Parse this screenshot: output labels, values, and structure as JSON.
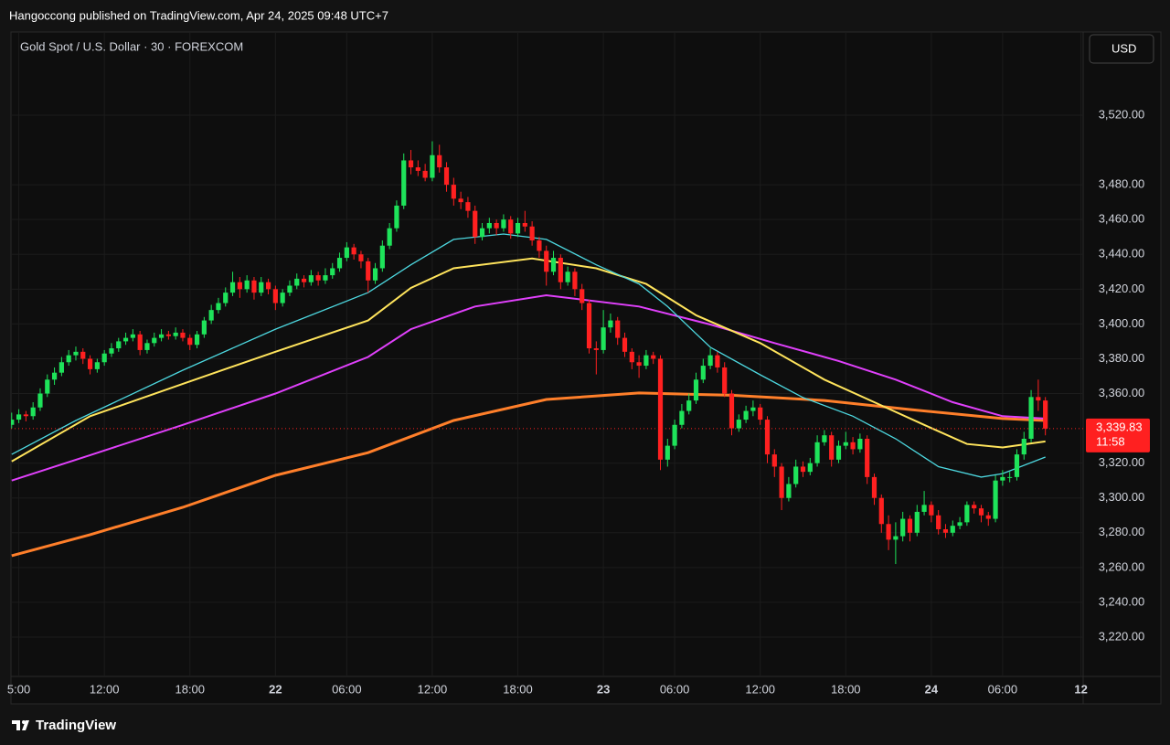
{
  "header": {
    "text": "Hangoccong published on TradingView.com, Apr 24, 2025 09:48 UTC+7"
  },
  "chart_data": {
    "type": "candlestick",
    "title": "Gold Spot / U.S. Dollar · 30 · FOREXCOM",
    "currency": "USD",
    "up_color": "#1ee35a",
    "down_color": "#ff2020",
    "grid": true,
    "ylim": [
      3197.4,
      3567.8
    ],
    "yticks": [
      {
        "value": 3220,
        "label": "3,220.00"
      },
      {
        "value": 3240,
        "label": "3,240.00"
      },
      {
        "value": 3260,
        "label": "3,260.00"
      },
      {
        "value": 3280,
        "label": "3,280.00"
      },
      {
        "value": 3300,
        "label": "3,300.00"
      },
      {
        "value": 3320,
        "label": "3,320.00"
      },
      {
        "value": 3360,
        "label": "3,360.00"
      },
      {
        "value": 3380,
        "label": "3,380.00"
      },
      {
        "value": 3400,
        "label": "3,400.00"
      },
      {
        "value": 3420,
        "label": "3,420.00"
      },
      {
        "value": 3440,
        "label": "3,440.00"
      },
      {
        "value": 3460,
        "label": "3,460.00"
      },
      {
        "value": 3480,
        "label": "3,480.00"
      },
      {
        "value": 3520,
        "label": "3,520.00"
      }
    ],
    "xlim": [
      -0.1,
      150.3
    ],
    "xticks": [
      {
        "value": 1,
        "label": "5:00"
      },
      {
        "value": 13,
        "label": "12:00"
      },
      {
        "value": 25,
        "label": "18:00"
      },
      {
        "value": 37,
        "label": "22"
      },
      {
        "value": 47,
        "label": "06:00"
      },
      {
        "value": 59,
        "label": "12:00"
      },
      {
        "value": 71,
        "label": "18:00"
      },
      {
        "value": 83,
        "label": "23"
      },
      {
        "value": 93,
        "label": "06:00"
      },
      {
        "value": 105,
        "label": "12:00"
      },
      {
        "value": 117,
        "label": "18:00"
      },
      {
        "value": 129,
        "label": "24"
      },
      {
        "value": 139,
        "label": "06:00"
      },
      {
        "value": 150,
        "label": "12"
      }
    ],
    "ohlc": [
      [
        3342,
        3349,
        3340,
        3345
      ],
      [
        3345,
        3351,
        3343,
        3348
      ],
      [
        3348,
        3350,
        3344,
        3347
      ],
      [
        3347,
        3355,
        3345,
        3352
      ],
      [
        3352,
        3363,
        3350,
        3360
      ],
      [
        3360,
        3371,
        3358,
        3368
      ],
      [
        3368,
        3375,
        3365,
        3372
      ],
      [
        3372,
        3381,
        3370,
        3378
      ],
      [
        3378,
        3385,
        3376,
        3382
      ],
      [
        3382,
        3387,
        3379,
        3384
      ],
      [
        3384,
        3386,
        3377,
        3380
      ],
      [
        3380,
        3382,
        3371,
        3374
      ],
      [
        3374,
        3380,
        3372,
        3378
      ],
      [
        3378,
        3385,
        3376,
        3383
      ],
      [
        3383,
        3389,
        3381,
        3386
      ],
      [
        3386,
        3392,
        3384,
        3390
      ],
      [
        3390,
        3395,
        3388,
        3392
      ],
      [
        3392,
        3397,
        3390,
        3394
      ],
      [
        3394,
        3396,
        3382,
        3385
      ],
      [
        3385,
        3391,
        3383,
        3389
      ],
      [
        3389,
        3395,
        3387,
        3392
      ],
      [
        3392,
        3397,
        3390,
        3394
      ],
      [
        3394,
        3396,
        3391,
        3393
      ],
      [
        3393,
        3398,
        3391,
        3395
      ],
      [
        3395,
        3397,
        3390,
        3392
      ],
      [
        3392,
        3394,
        3385,
        3388
      ],
      [
        3388,
        3396,
        3386,
        3394
      ],
      [
        3394,
        3404,
        3392,
        3402
      ],
      [
        3402,
        3411,
        3400,
        3408
      ],
      [
        3408,
        3415,
        3406,
        3412
      ],
      [
        3412,
        3421,
        3410,
        3418
      ],
      [
        3418,
        3430,
        3416,
        3424
      ],
      [
        3424,
        3427,
        3415,
        3420
      ],
      [
        3420,
        3428,
        3418,
        3425
      ],
      [
        3425,
        3427,
        3414,
        3418
      ],
      [
        3418,
        3427,
        3416,
        3424
      ],
      [
        3424,
        3426,
        3417,
        3420
      ],
      [
        3420,
        3422,
        3408,
        3412
      ],
      [
        3412,
        3420,
        3410,
        3418
      ],
      [
        3418,
        3425,
        3416,
        3422
      ],
      [
        3422,
        3429,
        3420,
        3426
      ],
      [
        3426,
        3428,
        3421,
        3424
      ],
      [
        3424,
        3431,
        3422,
        3428
      ],
      [
        3428,
        3430,
        3422,
        3425
      ],
      [
        3425,
        3432,
        3423,
        3428
      ],
      [
        3428,
        3435,
        3426,
        3432
      ],
      [
        3432,
        3441,
        3430,
        3438
      ],
      [
        3438,
        3447,
        3436,
        3444
      ],
      [
        3444,
        3446,
        3437,
        3440
      ],
      [
        3440,
        3442,
        3432,
        3436
      ],
      [
        3436,
        3438,
        3418,
        3425
      ],
      [
        3425,
        3435,
        3423,
        3432
      ],
      [
        3432,
        3448,
        3430,
        3445
      ],
      [
        3445,
        3458,
        3443,
        3455
      ],
      [
        3455,
        3471,
        3453,
        3468
      ],
      [
        3468,
        3498,
        3466,
        3494
      ],
      [
        3494,
        3500,
        3486,
        3490
      ],
      [
        3490,
        3494,
        3485,
        3488
      ],
      [
        3488,
        3492,
        3482,
        3484
      ],
      [
        3484,
        3505,
        3482,
        3497
      ],
      [
        3497,
        3503,
        3487,
        3490
      ],
      [
        3490,
        3493,
        3476,
        3480
      ],
      [
        3480,
        3484,
        3468,
        3472
      ],
      [
        3472,
        3476,
        3466,
        3470
      ],
      [
        3470,
        3473,
        3461,
        3465
      ],
      [
        3465,
        3468,
        3446,
        3450
      ],
      [
        3450,
        3458,
        3448,
        3455
      ],
      [
        3455,
        3461,
        3452,
        3458
      ],
      [
        3458,
        3460,
        3451,
        3455
      ],
      [
        3455,
        3463,
        3453,
        3460
      ],
      [
        3460,
        3462,
        3449,
        3452
      ],
      [
        3452,
        3461,
        3450,
        3458
      ],
      [
        3458,
        3465,
        3453,
        3456
      ],
      [
        3456,
        3459,
        3445,
        3448
      ],
      [
        3448,
        3450,
        3438,
        3442
      ],
      [
        3442,
        3445,
        3422,
        3430
      ],
      [
        3430,
        3442,
        3428,
        3438
      ],
      [
        3438,
        3440,
        3420,
        3424
      ],
      [
        3424,
        3433,
        3422,
        3430
      ],
      [
        3430,
        3432,
        3416,
        3420
      ],
      [
        3420,
        3423,
        3408,
        3412
      ],
      [
        3412,
        3414,
        3383,
        3386
      ],
      [
        3386,
        3390,
        3371,
        3385
      ],
      [
        3385,
        3408,
        3383,
        3398
      ],
      [
        3398,
        3406,
        3395,
        3402
      ],
      [
        3402,
        3404,
        3388,
        3392
      ],
      [
        3392,
        3395,
        3381,
        3384
      ],
      [
        3384,
        3386,
        3374,
        3378
      ],
      [
        3378,
        3382,
        3369,
        3376
      ],
      [
        3376,
        3385,
        3374,
        3382
      ],
      [
        3382,
        3384,
        3377,
        3380
      ],
      [
        3380,
        3382,
        3316,
        3322
      ],
      [
        3322,
        3334,
        3318,
        3330
      ],
      [
        3330,
        3345,
        3328,
        3342
      ],
      [
        3342,
        3354,
        3340,
        3350
      ],
      [
        3350,
        3360,
        3348,
        3356
      ],
      [
        3356,
        3372,
        3354,
        3368
      ],
      [
        3368,
        3380,
        3366,
        3376
      ],
      [
        3376,
        3386,
        3374,
        3382
      ],
      [
        3382,
        3384,
        3372,
        3375
      ],
      [
        3375,
        3378,
        3358,
        3360
      ],
      [
        3360,
        3362,
        3336,
        3340
      ],
      [
        3340,
        3348,
        3338,
        3345
      ],
      [
        3345,
        3353,
        3343,
        3350
      ],
      [
        3350,
        3356,
        3347,
        3352
      ],
      [
        3352,
        3354,
        3342,
        3345
      ],
      [
        3345,
        3347,
        3320,
        3325
      ],
      [
        3325,
        3328,
        3312,
        3318
      ],
      [
        3318,
        3320,
        3293,
        3300
      ],
      [
        3300,
        3312,
        3298,
        3308
      ],
      [
        3308,
        3322,
        3306,
        3318
      ],
      [
        3318,
        3321,
        3312,
        3315
      ],
      [
        3315,
        3323,
        3313,
        3320
      ],
      [
        3320,
        3336,
        3318,
        3332
      ],
      [
        3332,
        3339,
        3330,
        3336
      ],
      [
        3336,
        3338,
        3318,
        3322
      ],
      [
        3322,
        3333,
        3320,
        3330
      ],
      [
        3330,
        3338,
        3328,
        3332
      ],
      [
        3332,
        3335,
        3325,
        3328
      ],
      [
        3328,
        3337,
        3326,
        3334
      ],
      [
        3334,
        3336,
        3308,
        3312
      ],
      [
        3312,
        3314,
        3296,
        3300
      ],
      [
        3300,
        3302,
        3280,
        3285
      ],
      [
        3285,
        3290,
        3270,
        3276
      ],
      [
        3276,
        3286,
        3262,
        3278
      ],
      [
        3278,
        3292,
        3275,
        3288
      ],
      [
        3288,
        3290,
        3275,
        3280
      ],
      [
        3280,
        3296,
        3278,
        3292
      ],
      [
        3292,
        3304,
        3290,
        3296
      ],
      [
        3296,
        3298,
        3286,
        3290
      ],
      [
        3290,
        3293,
        3279,
        3282
      ],
      [
        3282,
        3285,
        3277,
        3280
      ],
      [
        3280,
        3287,
        3278,
        3284
      ],
      [
        3284,
        3289,
        3282,
        3286
      ],
      [
        3286,
        3298,
        3284,
        3296
      ],
      [
        3296,
        3298,
        3291,
        3294
      ],
      [
        3294,
        3296,
        3286,
        3290
      ],
      [
        3290,
        3292,
        3284,
        3288
      ],
      [
        3288,
        3313,
        3286,
        3310
      ],
      [
        3310,
        3316,
        3307,
        3312
      ],
      [
        3312,
        3315,
        3309,
        3312
      ],
      [
        3312,
        3328,
        3310,
        3325
      ],
      [
        3325,
        3338,
        3322,
        3334
      ],
      [
        3334,
        3362,
        3332,
        3358
      ],
      [
        3358,
        3368,
        3350,
        3356
      ],
      [
        3356,
        3358,
        3336,
        3339.83
      ]
    ],
    "lines": [
      {
        "color": "#ff7f2a",
        "width": 3,
        "x": [
          0,
          11,
          24,
          37,
          50,
          62,
          75,
          88,
          101,
          114,
          126,
          139,
          145
        ],
        "values": [
          3266.8,
          3278.9,
          3294.6,
          3313,
          3326,
          3344.5,
          3356.6,
          3360.3,
          3359,
          3356,
          3350.8,
          3345.6,
          3344.5
        ]
      },
      {
        "color": "#e040fb",
        "width": 2,
        "x": [
          0,
          11,
          24,
          37,
          50,
          56,
          65,
          75,
          88,
          98,
          107,
          116,
          124,
          132,
          139,
          145
        ],
        "values": [
          3310,
          3324.6,
          3342,
          3360,
          3381,
          3397,
          3410,
          3416.5,
          3410,
          3399.7,
          3389,
          3378.7,
          3368,
          3355,
          3347,
          3345.6
        ]
      },
      {
        "color": "#ffe45c",
        "width": 2,
        "x": [
          0,
          11,
          24,
          37,
          50,
          56,
          62,
          73,
          82,
          89,
          96,
          105,
          114,
          121,
          128,
          134,
          139,
          145
        ],
        "values": [
          3321,
          3347,
          3365.6,
          3384,
          3402,
          3420.7,
          3432,
          3437.6,
          3432,
          3423,
          3405,
          3389,
          3368,
          3355,
          3342,
          3331,
          3329,
          3332.5
        ]
      },
      {
        "color": "#4dd8e0",
        "width": 1.3,
        "x": [
          0,
          9,
          24,
          37,
          50,
          56,
          62,
          69,
          75,
          82,
          88,
          92,
          98,
          105,
          111,
          118,
          124,
          130,
          136,
          139,
          145
        ],
        "values": [
          3325,
          3344.5,
          3373.4,
          3397,
          3418,
          3434,
          3448.6,
          3451.7,
          3448.6,
          3434,
          3423,
          3410,
          3386.6,
          3370.8,
          3357.7,
          3347,
          3334,
          3318,
          3312,
          3314,
          3323.5
        ]
      }
    ],
    "last_price": {
      "value": 3339.83,
      "label": "3,339.83"
    },
    "countdown": "11:58"
  },
  "footer": {
    "brand": "TradingView"
  }
}
